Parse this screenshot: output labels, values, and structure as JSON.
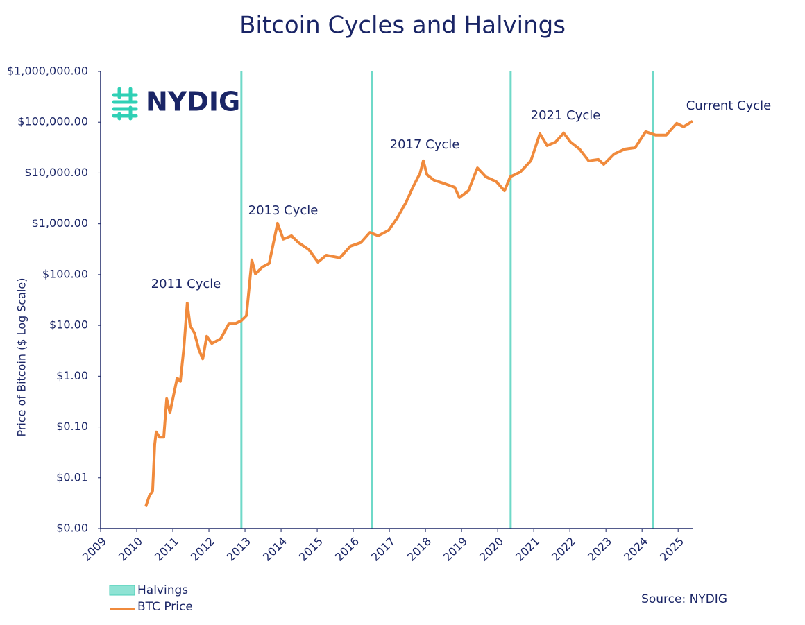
{
  "chart_data": {
    "type": "line",
    "title": "Bitcoin Cycles and Halvings",
    "y_label": "Price of Bitcoin ($ Log Scale)",
    "logo": "NYDIG",
    "source": "Source: NYDIG",
    "yscale": "log",
    "xlim": [
      2009,
      2025.4
    ],
    "xticks": [
      2009,
      2010,
      2011,
      2012,
      2013,
      2014,
      2015,
      2016,
      2017,
      2018,
      2019,
      2020,
      2021,
      2022,
      2023,
      2024,
      2025
    ],
    "ylim": [
      0.001,
      1000000
    ],
    "yticks": [
      {
        "value": 0.001,
        "label": "$0.00"
      },
      {
        "value": 0.01,
        "label": "$0.01"
      },
      {
        "value": 0.1,
        "label": "$0.10"
      },
      {
        "value": 1,
        "label": "$1.00"
      },
      {
        "value": 10,
        "label": "$10.00"
      },
      {
        "value": 100,
        "label": "$100.00"
      },
      {
        "value": 1000,
        "label": "$1,000.00"
      },
      {
        "value": 10000,
        "label": "$10,000.00"
      },
      {
        "value": 100000,
        "label": "$100,000.00"
      },
      {
        "value": 1000000,
        "label": "$1,000,000.00"
      }
    ],
    "halvings": {
      "name": "Halvings",
      "color": "#6fd9c8",
      "x": [
        2012.9,
        2016.52,
        2020.36,
        2024.3
      ]
    },
    "series": [
      {
        "name": "BTC Price",
        "color": "#f08a3c",
        "x": [
          2010.25,
          2010.35,
          2010.44,
          2010.5,
          2010.54,
          2010.63,
          2010.75,
          2010.83,
          2010.92,
          2011.02,
          2011.12,
          2011.21,
          2011.31,
          2011.4,
          2011.48,
          2011.6,
          2011.73,
          2011.83,
          2011.94,
          2012.08,
          2012.33,
          2012.56,
          2012.75,
          2012.9,
          2013.04,
          2013.19,
          2013.29,
          2013.48,
          2013.67,
          2013.9,
          2014.06,
          2014.29,
          2014.48,
          2014.77,
          2015.02,
          2015.25,
          2015.63,
          2015.92,
          2016.21,
          2016.46,
          2016.69,
          2016.98,
          2017.21,
          2017.46,
          2017.65,
          2017.85,
          2017.94,
          2018.04,
          2018.23,
          2018.52,
          2018.81,
          2018.94,
          2019.19,
          2019.44,
          2019.67,
          2019.96,
          2020.19,
          2020.35,
          2020.63,
          2020.92,
          2021.17,
          2021.37,
          2021.6,
          2021.83,
          2022.02,
          2022.27,
          2022.52,
          2022.79,
          2022.94,
          2023.23,
          2023.52,
          2023.81,
          2024.1,
          2024.38,
          2024.67,
          2024.96,
          2025.15,
          2025.4
        ],
        "values": [
          0.0027,
          0.0044,
          0.0055,
          0.046,
          0.08,
          0.063,
          0.063,
          0.36,
          0.19,
          0.42,
          0.92,
          0.79,
          3.8,
          27.5,
          9.8,
          7.1,
          3.2,
          2.2,
          6.1,
          4.4,
          5.5,
          11,
          11,
          12.4,
          15.6,
          194,
          103,
          141,
          166,
          1026,
          498,
          582,
          427,
          310,
          176,
          240,
          214,
          363,
          427,
          676,
          582,
          748,
          1279,
          2630,
          5250,
          9880,
          17400,
          9300,
          7260,
          6200,
          5250,
          3280,
          4470,
          12600,
          8430,
          6770,
          4470,
          8430,
          10500,
          17400,
          59300,
          34700,
          40700,
          61300,
          40700,
          29500,
          17400,
          18500,
          14800,
          23800,
          29500,
          31600,
          65200,
          55700,
          55700,
          95100,
          81300,
          105000
        ]
      }
    ],
    "annotations": [
      "2011 Cycle",
      "2013 Cycle",
      "2017 Cycle",
      "2021 Cycle",
      "Current Cycle"
    ]
  }
}
